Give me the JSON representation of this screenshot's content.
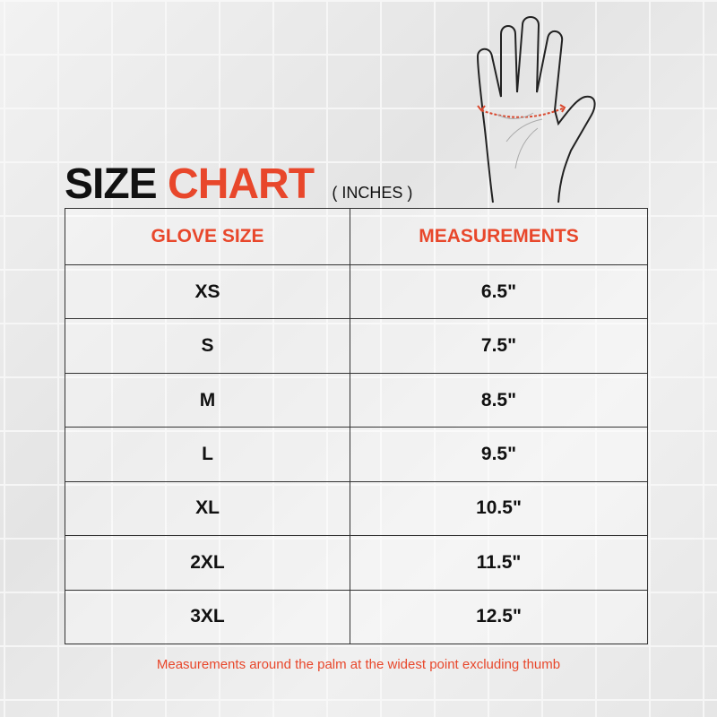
{
  "title": {
    "word1": "SIZE",
    "word2": "CHART",
    "unit": "( INCHES )"
  },
  "colors": {
    "accent": "#e8472b",
    "text": "#111111"
  },
  "table": {
    "headers": [
      "GLOVE SIZE",
      "MEASUREMENTS"
    ],
    "rows": [
      [
        "XS",
        "6.5\""
      ],
      [
        "S",
        "7.5\""
      ],
      [
        "M",
        "8.5\""
      ],
      [
        "L",
        "9.5\""
      ],
      [
        "XL",
        "10.5\""
      ],
      [
        "2XL",
        "11.5\""
      ],
      [
        "3XL",
        "12.5\""
      ]
    ]
  },
  "footnote": "Measurements around the palm at the widest point excluding thumb",
  "illustration": "hand-palm-measurement-icon"
}
